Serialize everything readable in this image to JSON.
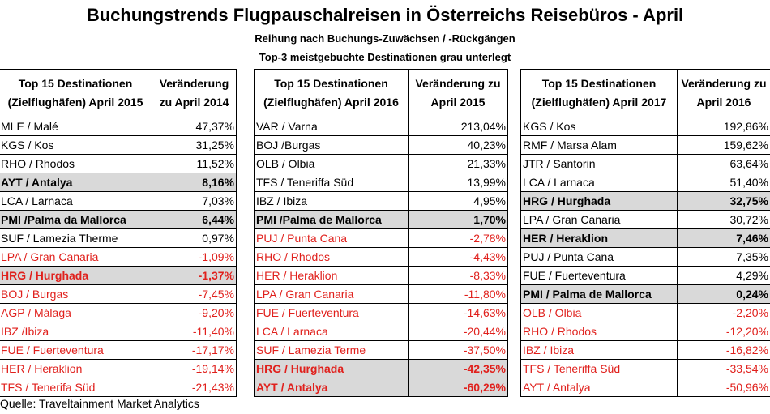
{
  "title": "Buchungstrends Flugpauschalreisen in Österreichs Reisebüros - April",
  "subtitle1": "Reihung nach Buchungs-Zuwächsen / -Rückgängen",
  "subtitle2": "Top-3 meistgebuchte Destinationen grau unterlegt",
  "source": "Quelle: Traveltainment Market Analytics",
  "colors": {
    "negative": "#e0201c",
    "top3_background": "#d9d9d9"
  },
  "tables": [
    {
      "header_dest": "Top 15 Destinationen (Zielflughäfen) April 2015",
      "header_change": "Veränderung zu April 2014",
      "rows": [
        {
          "dest": "MLE / Malé",
          "change": "47,37%",
          "top3": false,
          "negative": false
        },
        {
          "dest": "KGS / Kos",
          "change": "31,25%",
          "top3": false,
          "negative": false
        },
        {
          "dest": "RHO / Rhodos",
          "change": "11,52%",
          "top3": false,
          "negative": false
        },
        {
          "dest": "AYT / Antalya",
          "change": "8,16%",
          "top3": true,
          "negative": false
        },
        {
          "dest": "LCA / Larnaca",
          "change": "7,03%",
          "top3": false,
          "negative": false
        },
        {
          "dest": "PMI /Palma da Mallorca",
          "change": "6,44%",
          "top3": true,
          "negative": false
        },
        {
          "dest": "SUF / Lamezia Therme",
          "change": "0,97%",
          "top3": false,
          "negative": false
        },
        {
          "dest": "LPA / Gran Canaria",
          "change": "-1,09%",
          "top3": false,
          "negative": true
        },
        {
          "dest": "HRG / Hurghada",
          "change": "-1,37%",
          "top3": true,
          "negative": true
        },
        {
          "dest": "BOJ / Burgas",
          "change": "-7,45%",
          "top3": false,
          "negative": true
        },
        {
          "dest": "AGP / Málaga",
          "change": "-9,20%",
          "top3": false,
          "negative": true
        },
        {
          "dest": "IBZ /Ibiza",
          "change": "-11,40%",
          "top3": false,
          "negative": true
        },
        {
          "dest": "FUE / Fuerteventura",
          "change": "-17,17%",
          "top3": false,
          "negative": true
        },
        {
          "dest": "HER / Heraklion",
          "change": "-19,14%",
          "top3": false,
          "negative": true
        },
        {
          "dest": "TFS / Tenerifa Süd",
          "change": "-21,43%",
          "top3": false,
          "negative": true
        }
      ]
    },
    {
      "header_dest": "Top 15 Destinationen (Zielflughäfen) April 2016",
      "header_change": "Veränderung zu April 2015",
      "rows": [
        {
          "dest": "VAR / Varna",
          "change": "213,04%",
          "top3": false,
          "negative": false
        },
        {
          "dest": "BOJ /Burgas",
          "change": "40,23%",
          "top3": false,
          "negative": false
        },
        {
          "dest": "OLB / Olbia",
          "change": "21,33%",
          "top3": false,
          "negative": false
        },
        {
          "dest": "TFS / Teneriffa Süd",
          "change": "13,99%",
          "top3": false,
          "negative": false
        },
        {
          "dest": "IBZ / Ibiza",
          "change": "4,95%",
          "top3": false,
          "negative": false
        },
        {
          "dest": "PMI /Palma de Mallorca",
          "change": "1,70%",
          "top3": true,
          "negative": false
        },
        {
          "dest": "PUJ / Punta Cana",
          "change": "-2,78%",
          "top3": false,
          "negative": true
        },
        {
          "dest": "RHO / Rhodos",
          "change": "-4,43%",
          "top3": false,
          "negative": true
        },
        {
          "dest": "HER / Heraklion",
          "change": "-8,33%",
          "top3": false,
          "negative": true
        },
        {
          "dest": "LPA / Gran Canaria",
          "change": "-11,80%",
          "top3": false,
          "negative": true
        },
        {
          "dest": "FUE / Fuerteventura",
          "change": "-14,63%",
          "top3": false,
          "negative": true
        },
        {
          "dest": "LCA / Larnaca",
          "change": "-20,44%",
          "top3": false,
          "negative": true
        },
        {
          "dest": "SUF / Lamezia Terme",
          "change": "-37,50%",
          "top3": false,
          "negative": true
        },
        {
          "dest": "HRG / Hurghada",
          "change": "-42,35%",
          "top3": true,
          "negative": true
        },
        {
          "dest": "AYT / Antalya",
          "change": "-60,29%",
          "top3": true,
          "negative": true
        }
      ]
    },
    {
      "header_dest": "Top 15 Destinationen (Zielflughäfen) April 2017",
      "header_change": "Veränderung zu April 2016",
      "rows": [
        {
          "dest": "KGS / Kos",
          "change": "192,86%",
          "top3": false,
          "negative": false
        },
        {
          "dest": "RMF / Marsa Alam",
          "change": "159,62%",
          "top3": false,
          "negative": false
        },
        {
          "dest": "JTR / Santorin",
          "change": "63,64%",
          "top3": false,
          "negative": false
        },
        {
          "dest": "LCA / Larnaca",
          "change": "51,40%",
          "top3": false,
          "negative": false
        },
        {
          "dest": "HRG / Hurghada",
          "change": "32,75%",
          "top3": true,
          "negative": false
        },
        {
          "dest": "LPA / Gran Canaria",
          "change": "30,72%",
          "top3": false,
          "negative": false
        },
        {
          "dest": "HER / Heraklion",
          "change": "7,46%",
          "top3": true,
          "negative": false
        },
        {
          "dest": "PUJ / Punta Cana",
          "change": "7,35%",
          "top3": false,
          "negative": false
        },
        {
          "dest": "FUE / Fuerteventura",
          "change": "4,29%",
          "top3": false,
          "negative": false
        },
        {
          "dest": "PMI / Palma de Mallorca",
          "change": "0,24%",
          "top3": true,
          "negative": false
        },
        {
          "dest": "OLB / Olbia",
          "change": "-2,20%",
          "top3": false,
          "negative": true
        },
        {
          "dest": "RHO / Rhodos",
          "change": "-12,20%",
          "top3": false,
          "negative": true
        },
        {
          "dest": "IBZ / Ibiza",
          "change": "-16,82%",
          "top3": false,
          "negative": true
        },
        {
          "dest": "TFS / Teneriffa Süd",
          "change": "-33,54%",
          "top3": false,
          "negative": true
        },
        {
          "dest": "AYT / Antalya",
          "change": "-50,96%",
          "top3": false,
          "negative": true
        }
      ]
    }
  ]
}
